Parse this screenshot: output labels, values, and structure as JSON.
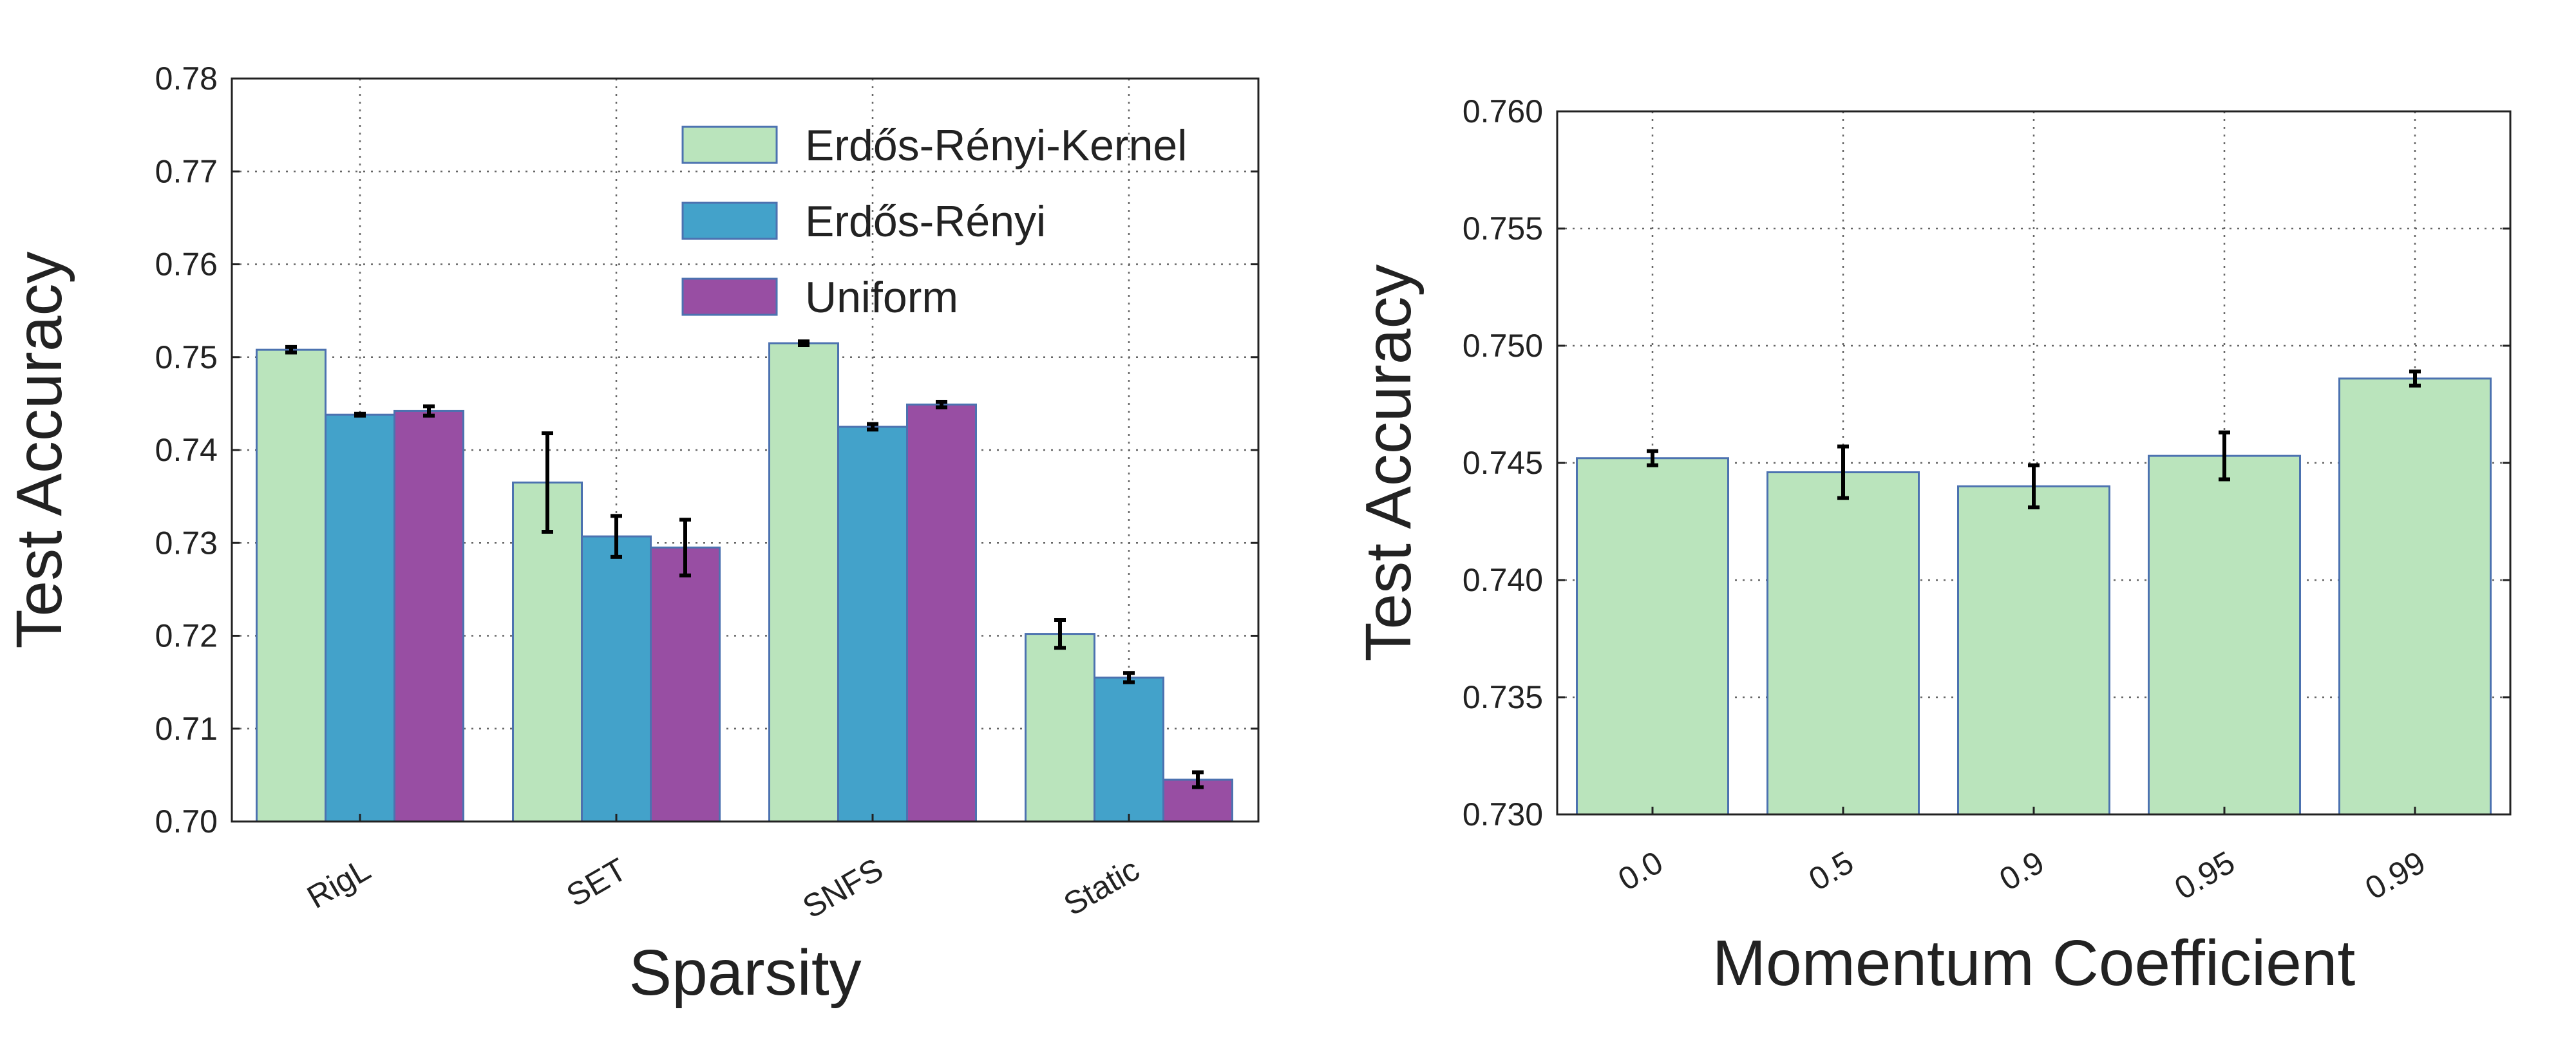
{
  "chart_data": [
    {
      "type": "bar",
      "xlabel": "Sparsity",
      "ylabel": "Test Accuracy",
      "categories": [
        "RigL",
        "SET",
        "SNFS",
        "Static"
      ],
      "ylim": [
        0.7,
        0.78
      ],
      "yticks": [
        "0.70",
        "0.71",
        "0.72",
        "0.73",
        "0.74",
        "0.75",
        "0.76",
        "0.77",
        "0.78"
      ],
      "grid": true,
      "legend_placement": "top-right",
      "series": [
        {
          "name": "Erdős-Rényi-Kernel",
          "color": "#bae4bc",
          "values": [
            0.7508,
            0.7365,
            0.7515,
            0.7202
          ],
          "errors": [
            0.0003,
            0.0053,
            0.0002,
            0.0015
          ]
        },
        {
          "name": "Erdős-Rényi",
          "color": "#43a2ca",
          "values": [
            0.7438,
            0.7307,
            0.7425,
            0.7155
          ],
          "errors": [
            0.0001,
            0.0022,
            0.0003,
            0.0005
          ]
        },
        {
          "name": "Uniform",
          "color": "#984ea3",
          "values": [
            0.7442,
            0.7295,
            0.7449,
            0.7045
          ],
          "errors": [
            0.0005,
            0.003,
            0.0003,
            0.0008
          ]
        }
      ]
    },
    {
      "type": "bar",
      "xlabel": "Momentum Coefficient",
      "ylabel": "Test Accuracy",
      "categories": [
        "0.0",
        "0.5",
        "0.9",
        "0.95",
        "0.99"
      ],
      "ylim": [
        0.73,
        0.76
      ],
      "yticks": [
        "0.730",
        "0.735",
        "0.740",
        "0.745",
        "0.750",
        "0.755",
        "0.760"
      ],
      "grid": true,
      "series": [
        {
          "color": "#bae4bc",
          "values": [
            0.7452,
            0.7446,
            0.744,
            0.7453,
            0.7486
          ],
          "errors": [
            0.0003,
            0.0011,
            0.0009,
            0.001,
            0.0003
          ]
        }
      ]
    }
  ]
}
